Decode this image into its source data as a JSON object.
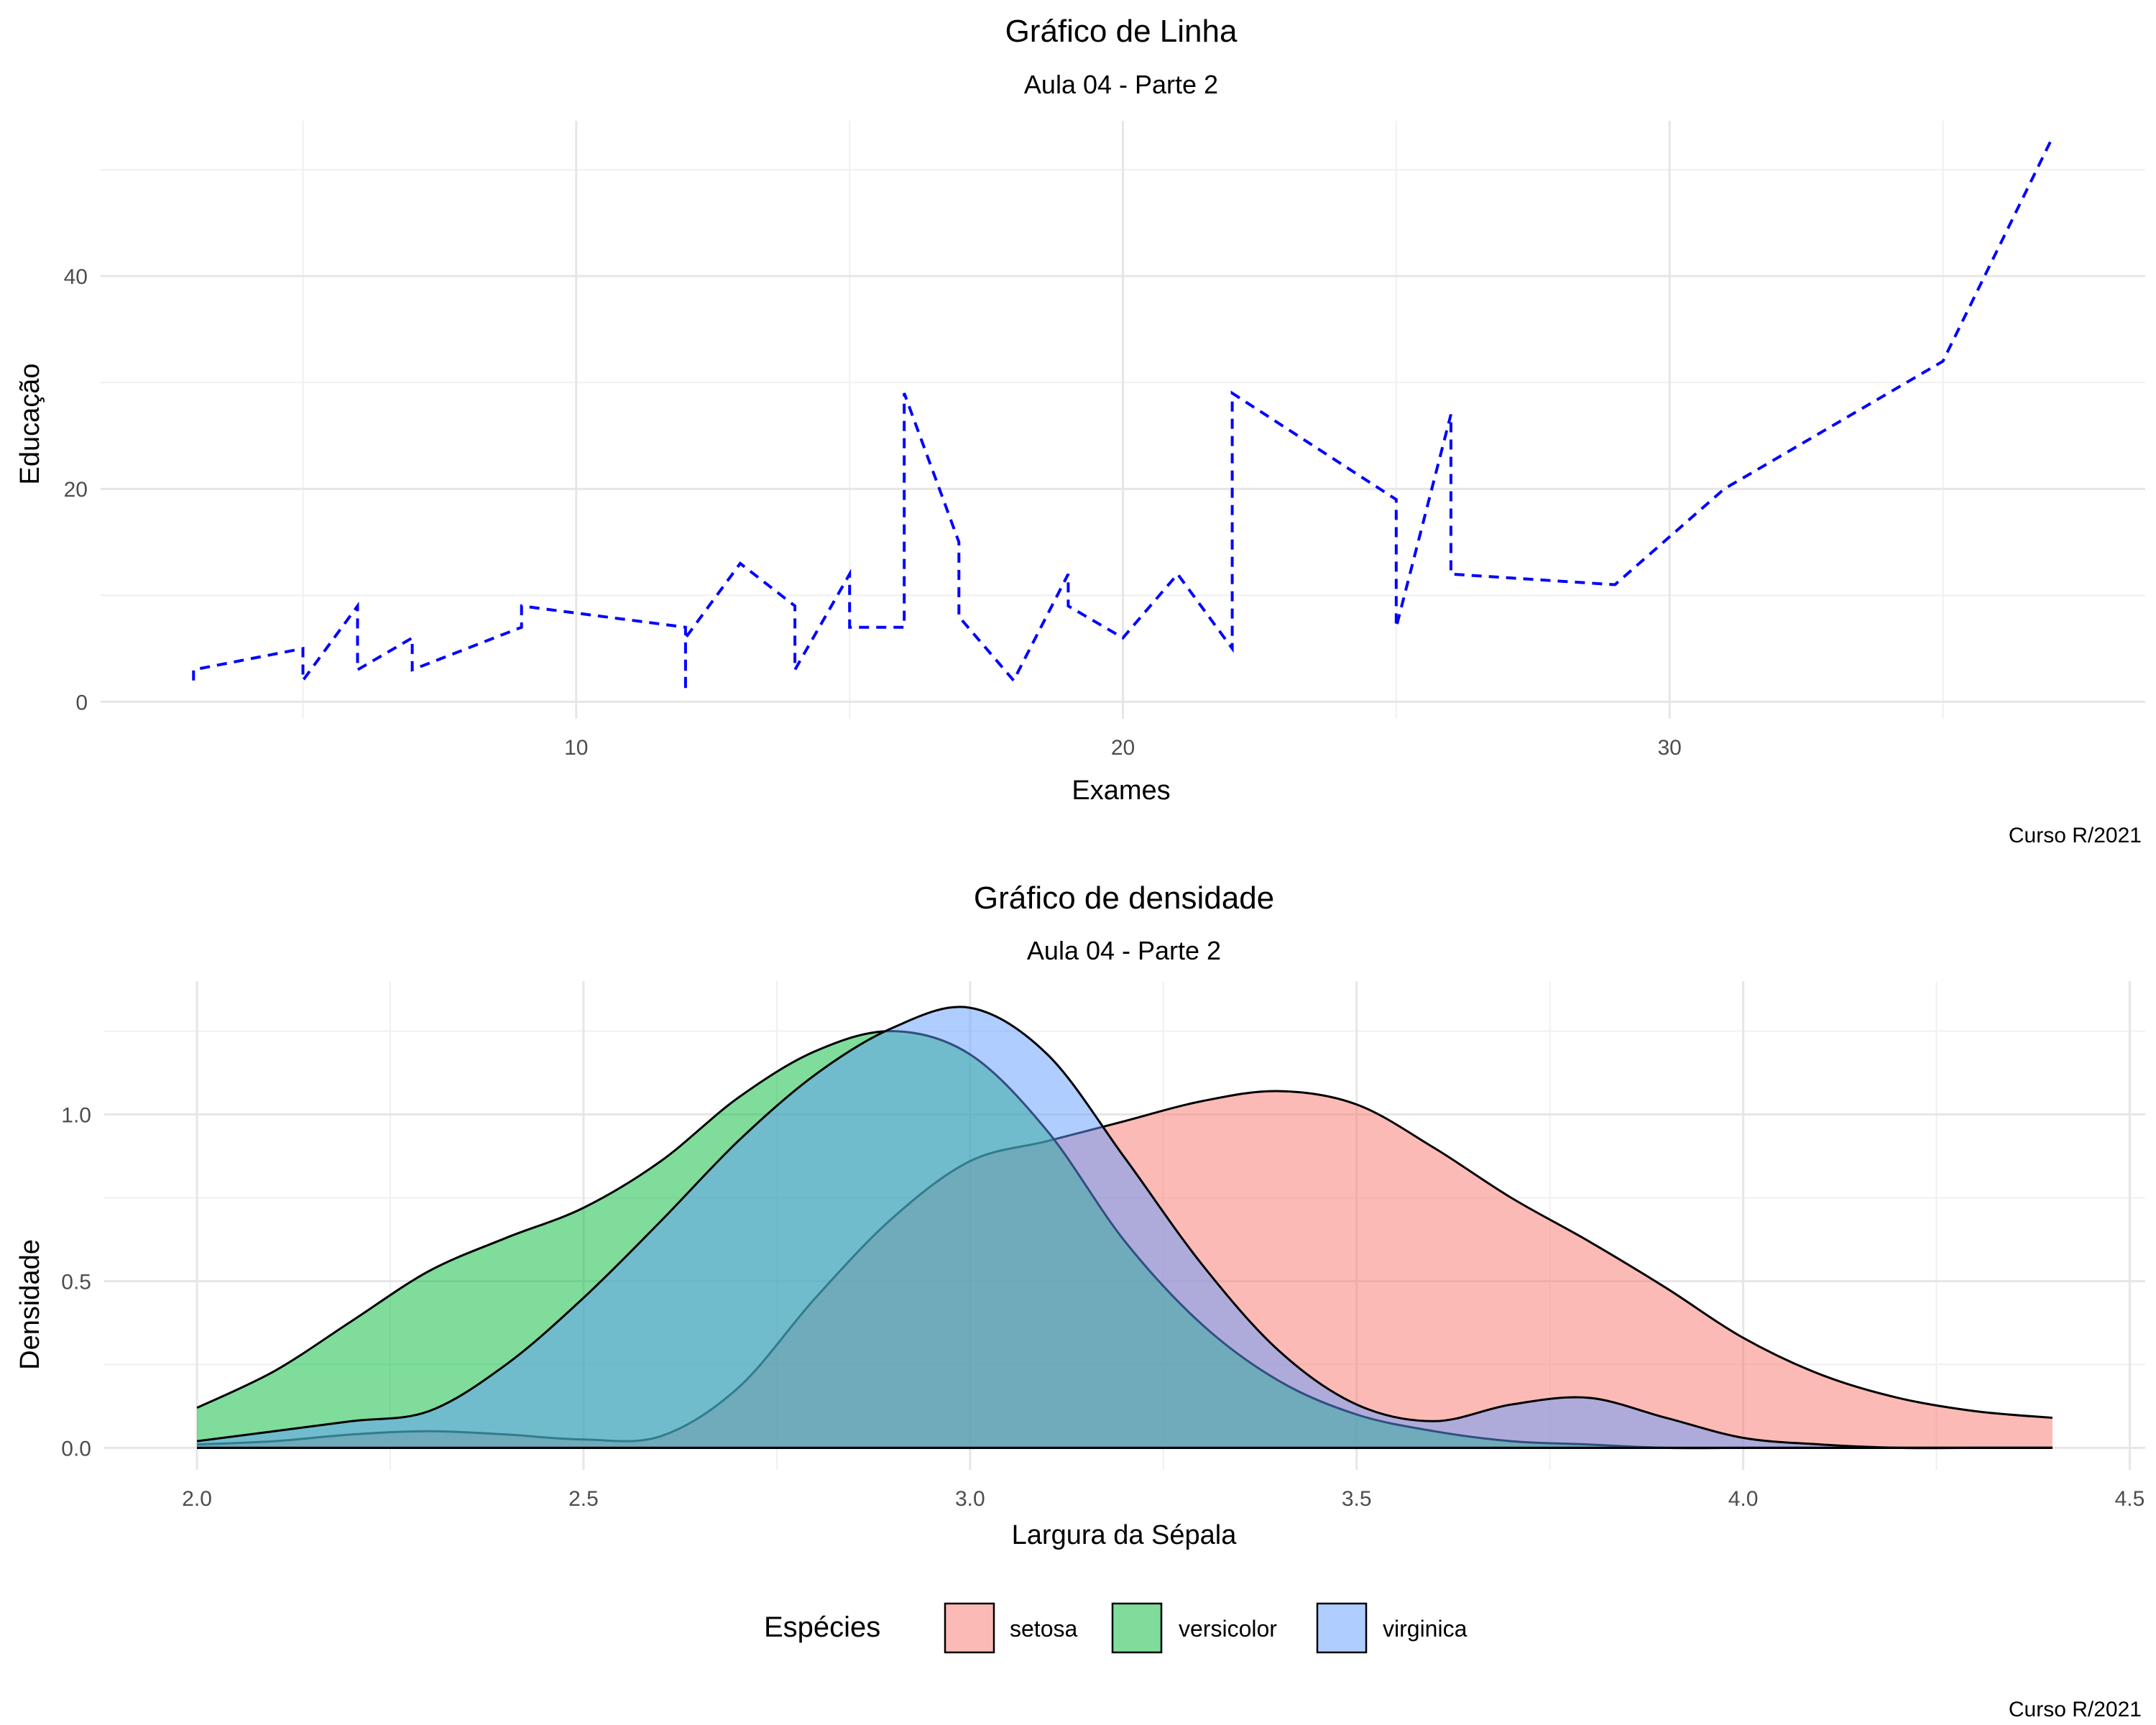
{
  "chart_data": [
    {
      "type": "line",
      "title": "Gráfico de Linha",
      "subtitle": "Aula 04 - Parte 2",
      "xlabel": "Exames",
      "ylabel": "Educação",
      "caption": "Curso R/2021",
      "xlim": [
        1.3,
        38.7
      ],
      "ylim": [
        -1.6,
        54.6
      ],
      "xticks": [
        10,
        20,
        30
      ],
      "xminor": [
        5,
        15,
        25,
        35
      ],
      "yticks": [
        0,
        20,
        40
      ],
      "yminor": [
        10,
        30,
        50
      ],
      "grid": true,
      "line_style": "dashed",
      "line_color": "#0000FF",
      "series": [
        {
          "x": [
            3,
            3,
            5,
            5,
            6,
            6,
            7,
            7,
            9,
            9,
            12,
            12,
            12,
            13,
            14,
            14,
            15,
            15,
            16,
            16,
            17,
            17,
            18,
            19,
            19,
            20,
            21,
            22,
            22,
            25,
            25,
            26,
            26,
            29,
            31,
            35,
            37
          ],
          "y": [
            2,
            3,
            5,
            2,
            9,
            3,
            6,
            3,
            7,
            9,
            7,
            1,
            6,
            13,
            9,
            3,
            12,
            7,
            7,
            29,
            15,
            8,
            2,
            12,
            9,
            6,
            12,
            5,
            29,
            19,
            7,
            27,
            12,
            11,
            20,
            32,
            53
          ]
        }
      ]
    },
    {
      "type": "area",
      "subtype": "density",
      "title": "Gráfico de densidade",
      "subtitle": "Aula 04 - Parte 2",
      "xlabel": "Largura da Sépala",
      "ylabel": "Densidade",
      "caption": "Curso R/2021",
      "xlim": [
        1.88,
        4.52
      ],
      "ylim": [
        -0.066,
        1.4
      ],
      "xticks": [
        2.0,
        2.5,
        3.0,
        3.5,
        4.0,
        4.5
      ],
      "xtick_labels": [
        "2.0",
        "2.5",
        "3.0",
        "3.5",
        "4.0",
        "4.5"
      ],
      "yticks": [
        0.0,
        0.5,
        1.0
      ],
      "ytick_labels": [
        "0.0",
        "0.5",
        "1.0"
      ],
      "yminor": [
        0.25,
        0.75,
        1.25
      ],
      "grid": true,
      "legend": {
        "title": "Espécies",
        "position": "bottom"
      },
      "x": [
        2.0,
        2.1,
        2.2,
        2.3,
        2.4,
        2.5,
        2.6,
        2.7,
        2.8,
        2.9,
        3.0,
        3.1,
        3.2,
        3.3,
        3.4,
        3.5,
        3.6,
        3.7,
        3.8,
        3.9,
        4.0,
        4.1,
        4.2,
        4.3,
        4.4
      ],
      "series": [
        {
          "name": "setosa",
          "color": "#F8766D",
          "values": [
            0.01,
            0.02,
            0.04,
            0.05,
            0.04,
            0.025,
            0.035,
            0.18,
            0.45,
            0.69,
            0.86,
            0.92,
            0.98,
            1.04,
            1.07,
            1.03,
            0.9,
            0.75,
            0.62,
            0.48,
            0.33,
            0.22,
            0.15,
            0.11,
            0.09
          ]
        },
        {
          "name": "versicolor",
          "color": "#00BA38",
          "values": [
            0.12,
            0.23,
            0.38,
            0.53,
            0.63,
            0.72,
            0.86,
            1.05,
            1.19,
            1.25,
            1.18,
            0.95,
            0.62,
            0.37,
            0.2,
            0.1,
            0.05,
            0.02,
            0.01,
            0.0,
            0.0,
            0.0,
            0.0,
            0.0,
            0.0
          ]
        },
        {
          "name": "virginica",
          "color": "#619CFF",
          "values": [
            0.02,
            0.05,
            0.08,
            0.11,
            0.25,
            0.45,
            0.68,
            0.92,
            1.12,
            1.26,
            1.32,
            1.18,
            0.87,
            0.55,
            0.29,
            0.13,
            0.08,
            0.13,
            0.15,
            0.09,
            0.03,
            0.01,
            0.0,
            0.0,
            0.0
          ]
        }
      ]
    }
  ]
}
